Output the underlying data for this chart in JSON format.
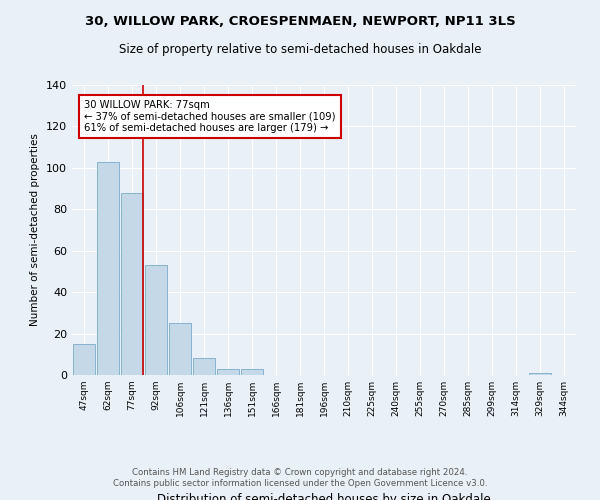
{
  "title": "30, WILLOW PARK, CROESPENMAEN, NEWPORT, NP11 3LS",
  "subtitle": "Size of property relative to semi-detached houses in Oakdale",
  "xlabel": "Distribution of semi-detached houses by size in Oakdale",
  "ylabel": "Number of semi-detached properties",
  "categories": [
    "47sqm",
    "62sqm",
    "77sqm",
    "92sqm",
    "106sqm",
    "121sqm",
    "136sqm",
    "151sqm",
    "166sqm",
    "181sqm",
    "196sqm",
    "210sqm",
    "225sqm",
    "240sqm",
    "255sqm",
    "270sqm",
    "285sqm",
    "299sqm",
    "314sqm",
    "329sqm",
    "344sqm"
  ],
  "values": [
    15,
    103,
    88,
    53,
    25,
    8,
    3,
    3,
    0,
    0,
    0,
    0,
    0,
    0,
    0,
    0,
    0,
    0,
    0,
    1,
    0
  ],
  "bar_color": "#c5d8e8",
  "bar_edge_color": "#7aabcc",
  "highlight_line_index": 2,
  "highlight_line_color": "#cc0000",
  "annotation_box_text": "30 WILLOW PARK: 77sqm\n← 37% of semi-detached houses are smaller (109)\n61% of semi-detached houses are larger (179) →",
  "annotation_box_color": "#cc0000",
  "ylim": [
    0,
    140
  ],
  "yticks": [
    0,
    20,
    40,
    60,
    80,
    100,
    120,
    140
  ],
  "background_color": "#eaf0f8",
  "grid_color": "#ffffff",
  "footer": "Contains HM Land Registry data © Crown copyright and database right 2024.\nContains public sector information licensed under the Open Government Licence v3.0."
}
